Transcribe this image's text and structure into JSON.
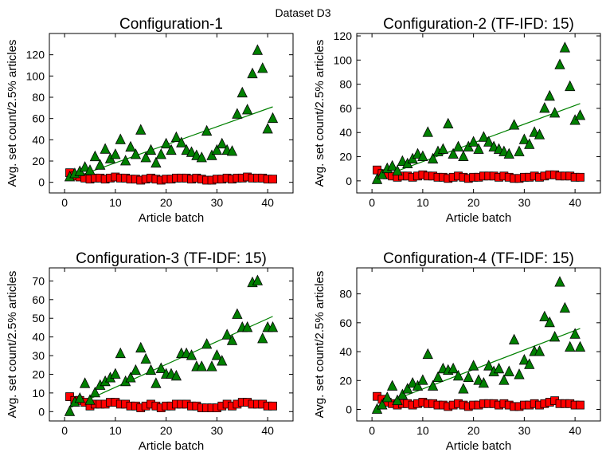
{
  "figure": {
    "title": "Dataset D3"
  },
  "chart_data": [
    {
      "type": "scatter",
      "title": "Configuration-1",
      "xlabel": "Article batch",
      "ylabel": "Avg. set count/2.5% articles",
      "xlim": [
        -3,
        45
      ],
      "ylim": [
        -10,
        140
      ],
      "xticks": [
        0,
        10,
        20,
        30,
        40
      ],
      "yticks": [
        0,
        20,
        40,
        60,
        80,
        100,
        120
      ],
      "grid": false,
      "series": [
        {
          "marker": "triangle",
          "color": "#008000",
          "x": [
            1,
            2,
            3,
            4,
            5,
            6,
            7,
            8,
            9,
            10,
            11,
            12,
            13,
            14,
            15,
            16,
            17,
            18,
            19,
            20,
            21,
            22,
            23,
            24,
            25,
            26,
            27,
            28,
            29,
            30,
            31,
            32,
            33,
            34,
            35,
            36,
            37,
            38,
            39,
            40,
            41
          ],
          "y": [
            5,
            8,
            10,
            14,
            11,
            24,
            16,
            31,
            22,
            26,
            40,
            20,
            33,
            26,
            49,
            23,
            30,
            18,
            26,
            36,
            30,
            42,
            37,
            30,
            28,
            25,
            23,
            48,
            25,
            30,
            36,
            30,
            29,
            64,
            84,
            68,
            102,
            124,
            107,
            50,
            60
          ]
        },
        {
          "marker": "square",
          "color": "#ff0000",
          "x": [
            1,
            2,
            3,
            4,
            5,
            6,
            7,
            8,
            9,
            10,
            11,
            12,
            13,
            14,
            15,
            16,
            17,
            18,
            19,
            20,
            21,
            22,
            23,
            24,
            25,
            26,
            27,
            28,
            29,
            30,
            31,
            32,
            33,
            34,
            35,
            36,
            37,
            38,
            39,
            40,
            41
          ],
          "y": [
            9,
            6,
            5,
            4,
            3,
            4,
            4,
            3,
            4,
            5,
            4,
            4,
            3,
            3,
            2,
            3,
            4,
            3,
            2,
            3,
            3,
            4,
            4,
            4,
            3,
            4,
            3,
            2,
            2,
            3,
            3,
            4,
            3,
            4,
            4,
            5,
            4,
            4,
            4,
            3,
            3
          ]
        },
        {
          "marker": "line",
          "color": "#008000",
          "x": [
            1,
            41
          ],
          "y": [
            3,
            71
          ]
        }
      ]
    },
    {
      "type": "scatter",
      "title": "Configuration-2 (TF-IFD: 15)",
      "xlabel": "Article batch",
      "ylabel": "Avg. set count/2.5% articles",
      "xlim": [
        -3,
        45
      ],
      "ylim": [
        -10,
        122
      ],
      "xticks": [
        0,
        10,
        20,
        30,
        40
      ],
      "yticks": [
        0,
        20,
        40,
        60,
        80,
        100,
        120
      ],
      "grid": false,
      "series": [
        {
          "marker": "triangle",
          "color": "#008000",
          "x": [
            1,
            2,
            3,
            4,
            5,
            6,
            7,
            8,
            9,
            10,
            11,
            12,
            13,
            14,
            15,
            16,
            17,
            18,
            19,
            20,
            21,
            22,
            23,
            24,
            25,
            26,
            27,
            28,
            29,
            30,
            31,
            32,
            33,
            34,
            35,
            36,
            37,
            38,
            39,
            40,
            41
          ],
          "y": [
            1,
            5,
            10,
            12,
            8,
            16,
            14,
            18,
            22,
            20,
            40,
            18,
            24,
            26,
            47,
            22,
            28,
            20,
            28,
            32,
            26,
            36,
            32,
            28,
            26,
            24,
            22,
            46,
            24,
            34,
            30,
            40,
            38,
            60,
            70,
            56,
            96,
            110,
            78,
            50,
            54
          ]
        },
        {
          "marker": "square",
          "color": "#ff0000",
          "x": [
            1,
            2,
            3,
            4,
            5,
            6,
            7,
            8,
            9,
            10,
            11,
            12,
            13,
            14,
            15,
            16,
            17,
            18,
            19,
            20,
            21,
            22,
            23,
            24,
            25,
            26,
            27,
            28,
            29,
            30,
            31,
            32,
            33,
            34,
            35,
            36,
            37,
            38,
            39,
            40,
            41
          ],
          "y": [
            9,
            6,
            5,
            4,
            3,
            4,
            4,
            3,
            4,
            5,
            4,
            4,
            3,
            3,
            2,
            3,
            4,
            3,
            2,
            3,
            3,
            4,
            4,
            4,
            3,
            4,
            3,
            2,
            2,
            3,
            3,
            4,
            3,
            4,
            5,
            5,
            4,
            4,
            4,
            3,
            3
          ]
        },
        {
          "marker": "line",
          "color": "#008000",
          "x": [
            1,
            41
          ],
          "y": [
            2,
            64
          ]
        }
      ]
    },
    {
      "type": "scatter",
      "title": "Configuration-3 (TF-IDF: 15)",
      "xlabel": "Article batch",
      "ylabel": "Avg. set count/2.5% articles",
      "xlim": [
        -3,
        45
      ],
      "ylim": [
        -5,
        77
      ],
      "xticks": [
        0,
        10,
        20,
        30,
        40
      ],
      "yticks": [
        0,
        10,
        20,
        30,
        40,
        50,
        60,
        70
      ],
      "grid": false,
      "series": [
        {
          "marker": "triangle",
          "color": "#008000",
          "x": [
            1,
            2,
            3,
            4,
            5,
            6,
            7,
            8,
            9,
            10,
            11,
            12,
            13,
            14,
            15,
            16,
            17,
            18,
            19,
            20,
            21,
            22,
            23,
            24,
            25,
            26,
            27,
            28,
            29,
            30,
            31,
            32,
            33,
            34,
            35,
            36,
            37,
            38,
            39,
            40,
            41
          ],
          "y": [
            0,
            5,
            7,
            15,
            6,
            10,
            14,
            16,
            18,
            20,
            31,
            16,
            18,
            22,
            34,
            28,
            22,
            15,
            23,
            20,
            20,
            19,
            31,
            31,
            30,
            24,
            24,
            36,
            24,
            30,
            27,
            41,
            38,
            52,
            45,
            45,
            69,
            70,
            39,
            45,
            45
          ]
        },
        {
          "marker": "square",
          "color": "#ff0000",
          "x": [
            1,
            2,
            3,
            4,
            5,
            6,
            7,
            8,
            9,
            10,
            11,
            12,
            13,
            14,
            15,
            16,
            17,
            18,
            19,
            20,
            21,
            22,
            23,
            24,
            25,
            26,
            27,
            28,
            29,
            30,
            31,
            32,
            33,
            34,
            35,
            36,
            37,
            38,
            39,
            40,
            41
          ],
          "y": [
            8,
            6,
            6,
            5,
            3,
            4,
            4,
            4,
            5,
            5,
            4,
            4,
            3,
            3,
            2,
            3,
            4,
            3,
            2,
            3,
            3,
            4,
            4,
            4,
            3,
            3,
            2,
            2,
            2,
            2,
            3,
            4,
            3,
            4,
            5,
            5,
            4,
            4,
            4,
            3,
            3
          ]
        },
        {
          "marker": "line",
          "color": "#008000",
          "x": [
            1,
            41
          ],
          "y": [
            2,
            51
          ]
        }
      ]
    },
    {
      "type": "scatter",
      "title": "Configuration-4 (TF-IDF: 15)",
      "xlabel": "Article batch",
      "ylabel": "Avg. set count/2.5% articles",
      "xlim": [
        -3,
        45
      ],
      "ylim": [
        -8,
        98
      ],
      "xticks": [
        0,
        10,
        20,
        30,
        40
      ],
      "yticks": [
        0,
        20,
        40,
        60,
        80
      ],
      "grid": false,
      "series": [
        {
          "marker": "triangle",
          "color": "#008000",
          "x": [
            1,
            2,
            3,
            4,
            5,
            6,
            7,
            8,
            9,
            10,
            11,
            12,
            13,
            14,
            15,
            16,
            17,
            18,
            19,
            20,
            21,
            22,
            23,
            24,
            25,
            26,
            27,
            28,
            29,
            30,
            31,
            32,
            33,
            34,
            35,
            36,
            37,
            38,
            39,
            40,
            41
          ],
          "y": [
            0,
            3,
            8,
            16,
            6,
            10,
            14,
            18,
            16,
            20,
            38,
            16,
            22,
            28,
            27,
            28,
            23,
            14,
            22,
            30,
            20,
            18,
            30,
            26,
            28,
            20,
            26,
            48,
            24,
            34,
            31,
            40,
            40,
            64,
            60,
            50,
            88,
            70,
            43,
            52,
            43
          ]
        },
        {
          "marker": "square",
          "color": "#ff0000",
          "x": [
            1,
            2,
            3,
            4,
            5,
            6,
            7,
            8,
            9,
            10,
            11,
            12,
            13,
            14,
            15,
            16,
            17,
            18,
            19,
            20,
            21,
            22,
            23,
            24,
            25,
            26,
            27,
            28,
            29,
            30,
            31,
            32,
            33,
            34,
            35,
            36,
            37,
            38,
            39,
            40,
            41
          ],
          "y": [
            9,
            7,
            5,
            4,
            3,
            4,
            4,
            3,
            4,
            5,
            4,
            4,
            3,
            3,
            2,
            3,
            4,
            3,
            2,
            3,
            3,
            4,
            4,
            4,
            3,
            4,
            3,
            2,
            2,
            3,
            3,
            4,
            3,
            4,
            5,
            6,
            4,
            4,
            4,
            3,
            3
          ]
        },
        {
          "marker": "line",
          "color": "#008000",
          "x": [
            1,
            41
          ],
          "y": [
            2,
            56
          ]
        }
      ]
    }
  ]
}
